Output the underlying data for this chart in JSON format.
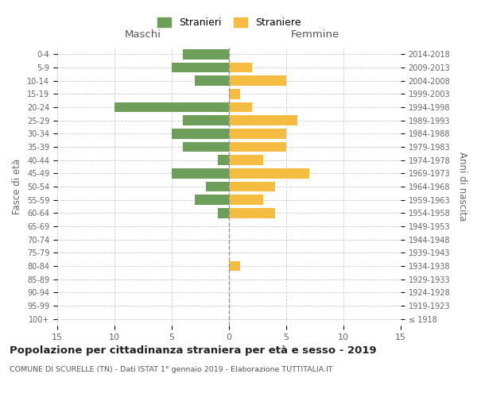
{
  "age_groups": [
    "100+",
    "95-99",
    "90-94",
    "85-89",
    "80-84",
    "75-79",
    "70-74",
    "65-69",
    "60-64",
    "55-59",
    "50-54",
    "45-49",
    "40-44",
    "35-39",
    "30-34",
    "25-29",
    "20-24",
    "15-19",
    "10-14",
    "5-9",
    "0-4"
  ],
  "birth_years": [
    "≤ 1918",
    "1919-1923",
    "1924-1928",
    "1929-1933",
    "1934-1938",
    "1939-1943",
    "1944-1948",
    "1949-1953",
    "1954-1958",
    "1959-1963",
    "1964-1968",
    "1969-1973",
    "1974-1978",
    "1979-1983",
    "1984-1988",
    "1989-1993",
    "1994-1998",
    "1999-2003",
    "2004-2008",
    "2009-2013",
    "2014-2018"
  ],
  "males": [
    0,
    0,
    0,
    0,
    0,
    0,
    0,
    0,
    1,
    3,
    2,
    5,
    1,
    4,
    5,
    4,
    10,
    0,
    3,
    5,
    4
  ],
  "females": [
    0,
    0,
    0,
    0,
    1,
    0,
    0,
    0,
    4,
    3,
    4,
    7,
    3,
    5,
    5,
    6,
    2,
    1,
    5,
    2,
    0
  ],
  "male_color": "#6d9e5a",
  "female_color": "#f5bc42",
  "title": "Popolazione per cittadinanza straniera per età e sesso - 2019",
  "subtitle": "COMUNE DI SCURELLE (TN) - Dati ISTAT 1° gennaio 2019 - Elaborazione TUTTITALIA.IT",
  "xlabel_left": "Maschi",
  "xlabel_right": "Femmine",
  "ylabel_left": "Fasce di età",
  "ylabel_right": "Anni di nascita",
  "legend_males": "Stranieri",
  "legend_females": "Straniere",
  "xlim": 15,
  "background_color": "#ffffff",
  "grid_color": "#cccccc"
}
